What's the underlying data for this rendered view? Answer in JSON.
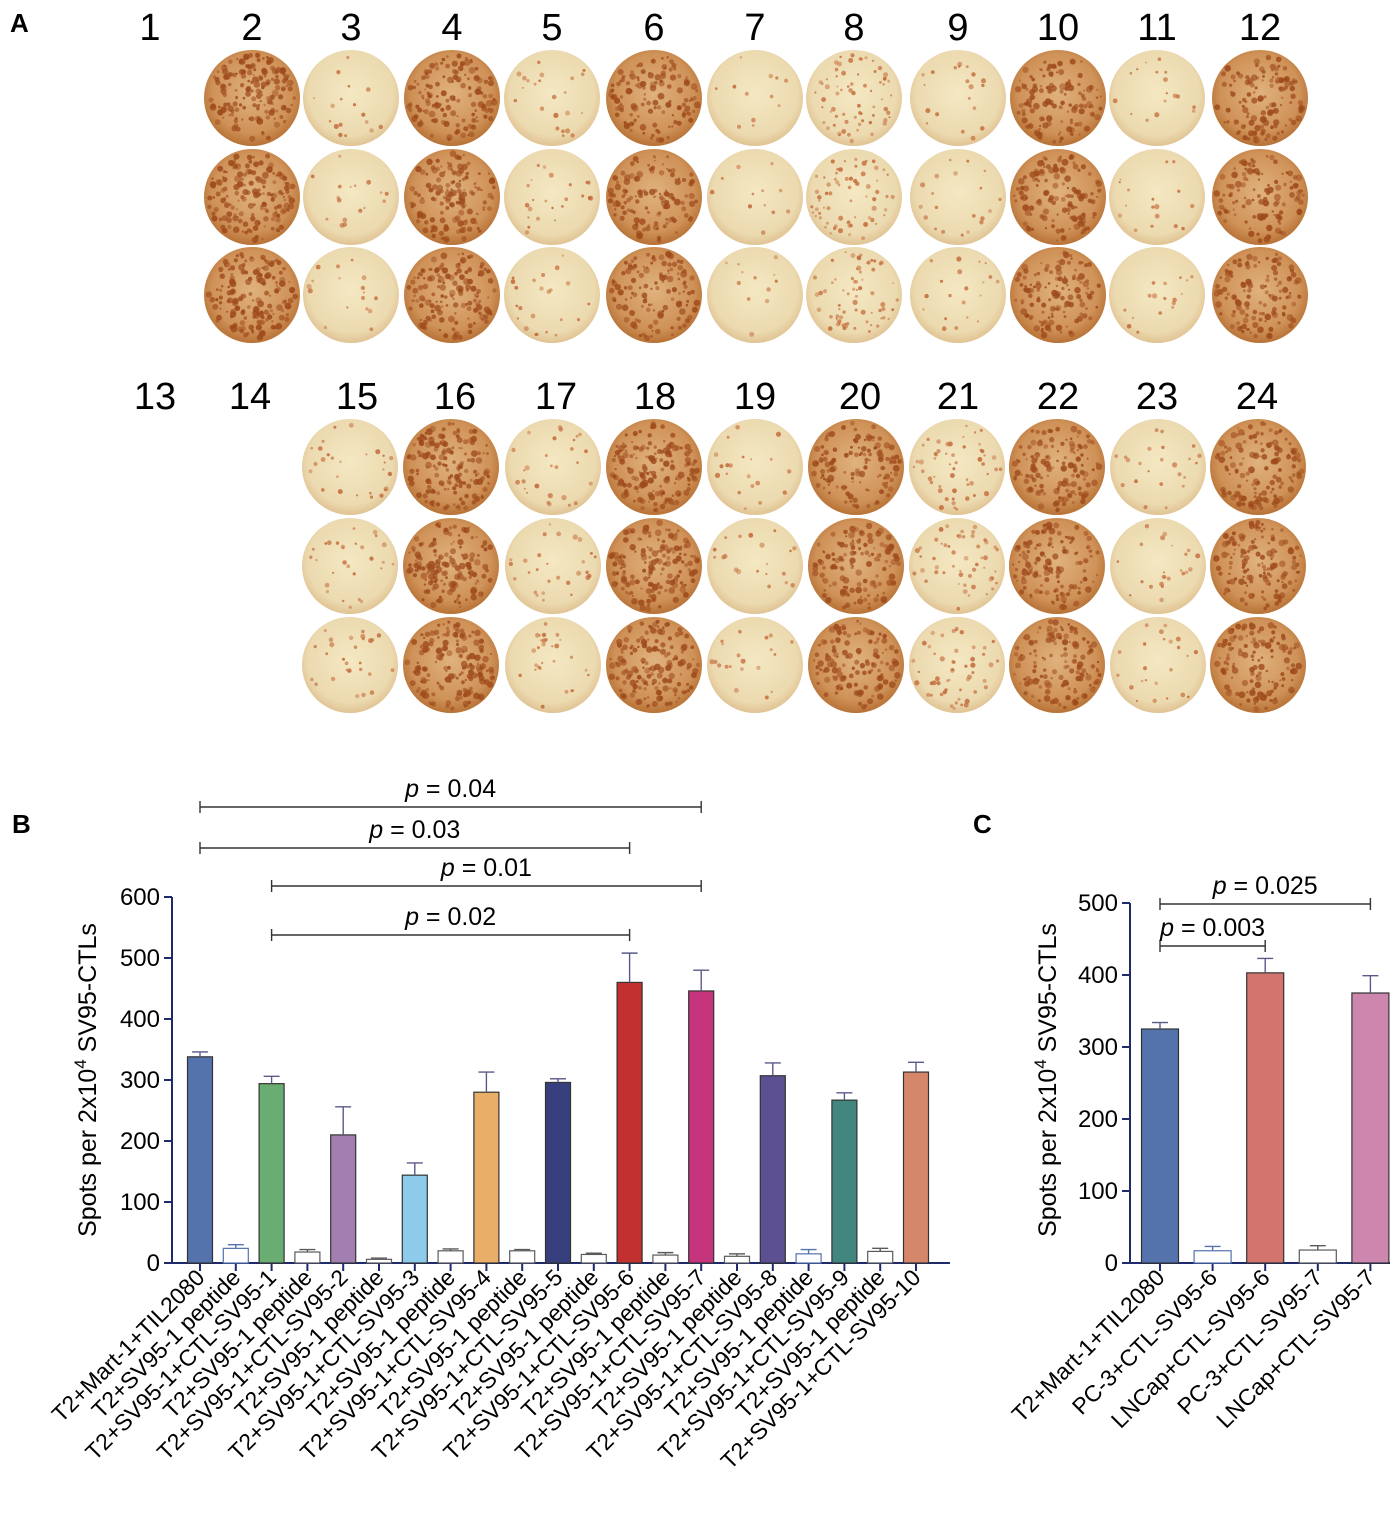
{
  "panel_a": {
    "label": "A",
    "top_row_numbers": [
      "1",
      "2",
      "3",
      "4",
      "5",
      "6",
      "7",
      "8",
      "9",
      "10",
      "11",
      "12"
    ],
    "bottom_row_numbers": [
      "13",
      "14",
      "15",
      "16",
      "17",
      "18",
      "19",
      "20",
      "21",
      "22",
      "23",
      "24"
    ],
    "top_well_density": [
      0,
      0.95,
      0.08,
      0.85,
      0.12,
      0.7,
      0.05,
      0.4,
      0.1,
      0.75,
      0.08,
      0.7
    ],
    "bottom_well_density": [
      0,
      0,
      0.15,
      0.95,
      0.15,
      0.95,
      0.1,
      0.75,
      0.3,
      0.8,
      0.12,
      0.8
    ]
  },
  "chart_data": [
    {
      "panel": "B",
      "type": "bar",
      "ylabel_prefix": "Spots per 2x10",
      "ylabel_exp": "4",
      "ylabel_suffix": " SV95-CTLs",
      "ylim": [
        0,
        600
      ],
      "yticks": [
        "0",
        "100",
        "200",
        "300",
        "400",
        "500",
        "600"
      ],
      "categories": [
        "T2+Mart-1+TIL2080",
        "T2+SV95-1 peptide",
        "T2+SV95-1+CTL-SV95-1",
        "T2+SV95-1 peptide",
        "T2+SV95-1+CTL-SV95-2",
        "T2+SV95-1 peptide",
        "T2+SV95-1+CTL-SV95-3",
        "T2+SV95-1 peptide",
        "T2+SV95-1+CTL-SV95-4",
        "T2+SV95-1 peptide",
        "T2+SV95-1+CTL-SV95-5",
        "T2+SV95-1 peptide",
        "T2+SV95-1+CTL-SV95-6",
        "T2+SV95-1 peptide",
        "T2+SV95-1+CTL-SV95-7",
        "T2+SV95-1 peptide",
        "T2+SV95-1+CTL-SV95-8",
        "T2+SV95-1 peptide",
        "T2+SV95-1+CTL-SV95-9",
        "T2+SV95-1 peptide",
        "T2+SV95-1+CTL-SV95-10"
      ],
      "values": [
        338,
        24,
        294,
        18,
        210,
        6,
        144,
        20,
        280,
        20,
        296,
        14,
        460,
        13,
        446,
        11,
        307,
        15,
        267,
        19,
        313
      ],
      "errors": [
        8,
        6,
        12,
        4,
        46,
        2,
        20,
        3,
        33,
        2,
        6,
        2,
        48,
        4,
        34,
        4,
        21,
        7,
        12,
        5,
        16
      ],
      "colors": [
        "#5472ac",
        "#ffffff",
        "#6aad72",
        "#ffffff",
        "#a27fb0",
        "#ffffff",
        "#8ecae9",
        "#ffffff",
        "#e9ae68",
        "#ffffff",
        "#383f7e",
        "#ffffff",
        "#c2312f",
        "#ffffff",
        "#c5347c",
        "#ffffff",
        "#5c4f92",
        "#ffffff",
        "#41867f",
        "#ffffff",
        "#d6876b"
      ],
      "comparisons": [
        {
          "from": 0,
          "to": 14,
          "text": "p = 0.04"
        },
        {
          "from": 0,
          "to": 12,
          "text": "p = 0.03"
        },
        {
          "from": 2,
          "to": 14,
          "text": "p = 0.01"
        },
        {
          "from": 2,
          "to": 12,
          "text": "p = 0.02"
        }
      ]
    },
    {
      "panel": "C",
      "type": "bar",
      "ylabel_prefix": "Spots per 2x10",
      "ylabel_exp": "4",
      "ylabel_suffix": " SV95-CTLs",
      "ylim": [
        0,
        500
      ],
      "yticks": [
        "0",
        "100",
        "200",
        "300",
        "400",
        "500"
      ],
      "categories": [
        "T2+Mart-1+TIL2080",
        "PC-3+CTL-SV95-6",
        "LNCap+CTL-SV95-6",
        "PC-3+CTL-SV95-7",
        "LNCap+CTL-SV95-7"
      ],
      "values": [
        325,
        17,
        403,
        18,
        375
      ],
      "errors": [
        9,
        6,
        20,
        6,
        24
      ],
      "colors": [
        "#5472ac",
        "#ffffff",
        "#d3746e",
        "#ffffff",
        "#cd86ad"
      ],
      "comparisons": [
        {
          "from": 0,
          "to": 4,
          "text": "p = 0.025"
        },
        {
          "from": 0,
          "to": 2,
          "text": "p = 0.003"
        }
      ]
    }
  ]
}
